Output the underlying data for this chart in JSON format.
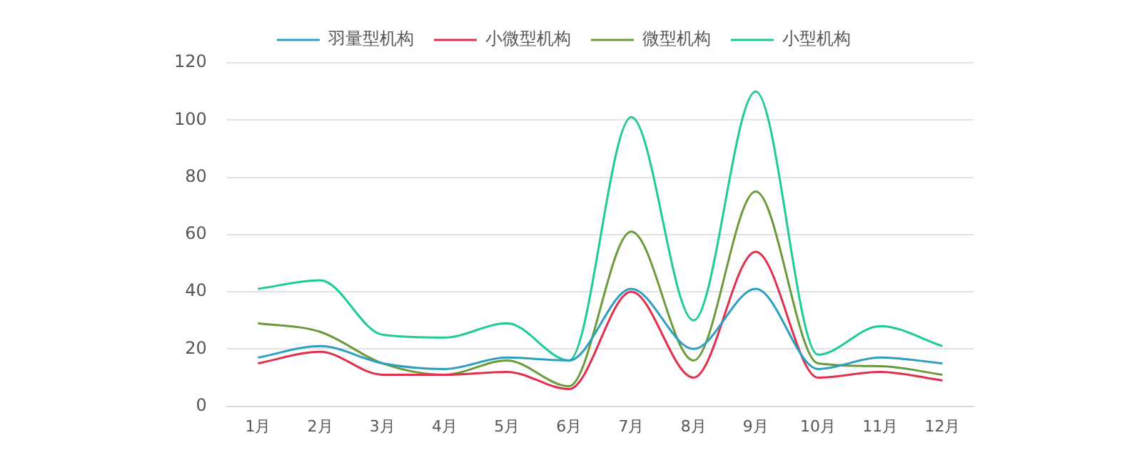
{
  "chart_data": {
    "type": "line",
    "categories": [
      "1月",
      "2月",
      "3月",
      "4月",
      "5月",
      "6月",
      "7月",
      "8月",
      "9月",
      "10月",
      "11月",
      "12月"
    ],
    "series": [
      {
        "name": "羽量型机构",
        "color": "#2e9fc0",
        "values": [
          17,
          21,
          15,
          13,
          17,
          16,
          41,
          20,
          41,
          13,
          17,
          15
        ]
      },
      {
        "name": "小微型机构",
        "color": "#e0304e",
        "values": [
          15,
          19,
          11,
          11,
          12,
          6,
          40,
          10,
          54,
          10,
          12,
          9
        ]
      },
      {
        "name": "微型机构",
        "color": "#6a9a3a",
        "values": [
          29,
          26,
          15,
          11,
          16,
          7,
          61,
          16,
          75,
          15,
          14,
          11
        ]
      },
      {
        "name": "小型机构",
        "color": "#1ccc94",
        "values": [
          41,
          44,
          25,
          24,
          29,
          16,
          101,
          30,
          110,
          18,
          28,
          21
        ]
      }
    ],
    "ylim": [
      0,
      120
    ],
    "yticks": [
      0,
      20,
      40,
      60,
      80,
      100,
      120
    ],
    "grid": "y",
    "legend": "top",
    "marker": "none",
    "line_style": "solid"
  }
}
